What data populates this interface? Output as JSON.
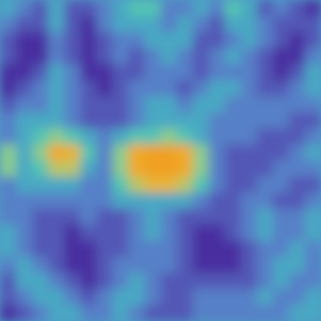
{
  "chart_data": {
    "type": "heatmap",
    "tick_labels": false,
    "cells": [
      [
        0.4,
        0.3,
        0.2,
        0.4,
        0.2,
        0.2,
        0.3,
        0.4,
        0.5,
        0.5,
        0.3,
        0.3,
        0.4,
        0.3,
        0.5,
        0.4,
        0.2,
        0.3,
        0.2,
        0.1
      ],
      [
        0.3,
        0.2,
        0.2,
        0.4,
        0.2,
        0.1,
        0.3,
        0.4,
        0.4,
        0.4,
        0.3,
        0.4,
        0.3,
        0.2,
        0.4,
        0.4,
        0.3,
        0.2,
        0.2,
        0.2
      ],
      [
        0.2,
        0.1,
        0.1,
        0.3,
        0.2,
        0.1,
        0.2,
        0.3,
        0.3,
        0.4,
        0.4,
        0.4,
        0.2,
        0.2,
        0.3,
        0.4,
        0.3,
        0.2,
        0.1,
        0.2
      ],
      [
        0.2,
        0.1,
        0.1,
        0.3,
        0.2,
        0.1,
        0.2,
        0.3,
        0.2,
        0.3,
        0.4,
        0.3,
        0.2,
        0.3,
        0.4,
        0.3,
        0.2,
        0.1,
        0.1,
        0.3
      ],
      [
        0.1,
        0.1,
        0.2,
        0.4,
        0.3,
        0.1,
        0.1,
        0.2,
        0.2,
        0.3,
        0.3,
        0.3,
        0.2,
        0.3,
        0.3,
        0.3,
        0.2,
        0.1,
        0.2,
        0.4
      ],
      [
        0.1,
        0.2,
        0.3,
        0.4,
        0.3,
        0.2,
        0.1,
        0.2,
        0.3,
        0.3,
        0.3,
        0.2,
        0.3,
        0.4,
        0.4,
        0.3,
        0.2,
        0.2,
        0.3,
        0.4
      ],
      [
        0.2,
        0.3,
        0.3,
        0.4,
        0.3,
        0.2,
        0.2,
        0.2,
        0.3,
        0.4,
        0.4,
        0.3,
        0.4,
        0.4,
        0.3,
        0.3,
        0.3,
        0.3,
        0.3,
        0.3
      ],
      [
        0.3,
        0.4,
        0.4,
        0.4,
        0.3,
        0.2,
        0.2,
        0.2,
        0.3,
        0.4,
        0.4,
        0.4,
        0.4,
        0.3,
        0.3,
        0.3,
        0.3,
        0.3,
        0.2,
        0.2
      ],
      [
        0.3,
        0.4,
        0.5,
        0.6,
        0.5,
        0.4,
        0.3,
        0.4,
        0.5,
        0.5,
        0.6,
        0.5,
        0.4,
        0.3,
        0.3,
        0.3,
        0.2,
        0.2,
        0.2,
        0.3
      ],
      [
        0.6,
        0.4,
        0.6,
        0.9,
        0.8,
        0.5,
        0.3,
        0.6,
        0.9,
        1.0,
        1.0,
        0.9,
        0.6,
        0.3,
        0.2,
        0.2,
        0.2,
        0.2,
        0.3,
        0.4
      ],
      [
        0.6,
        0.4,
        0.5,
        0.7,
        0.7,
        0.4,
        0.3,
        0.6,
        0.9,
        1.0,
        1.0,
        0.9,
        0.6,
        0.3,
        0.2,
        0.2,
        0.2,
        0.3,
        0.3,
        0.3
      ],
      [
        0.3,
        0.4,
        0.4,
        0.4,
        0.4,
        0.3,
        0.3,
        0.5,
        0.7,
        0.8,
        0.8,
        0.7,
        0.5,
        0.3,
        0.2,
        0.2,
        0.3,
        0.3,
        0.2,
        0.2
      ],
      [
        0.3,
        0.3,
        0.3,
        0.3,
        0.3,
        0.3,
        0.3,
        0.4,
        0.4,
        0.4,
        0.4,
        0.4,
        0.3,
        0.2,
        0.2,
        0.3,
        0.3,
        0.2,
        0.2,
        0.3
      ],
      [
        0.3,
        0.3,
        0.2,
        0.2,
        0.2,
        0.3,
        0.2,
        0.2,
        0.3,
        0.4,
        0.3,
        0.2,
        0.2,
        0.2,
        0.2,
        0.3,
        0.4,
        0.3,
        0.3,
        0.4
      ],
      [
        0.4,
        0.3,
        0.2,
        0.2,
        0.1,
        0.2,
        0.2,
        0.2,
        0.3,
        0.4,
        0.3,
        0.2,
        0.1,
        0.1,
        0.2,
        0.3,
        0.4,
        0.3,
        0.3,
        0.4
      ],
      [
        0.4,
        0.3,
        0.2,
        0.2,
        0.1,
        0.1,
        0.2,
        0.2,
        0.3,
        0.3,
        0.3,
        0.2,
        0.1,
        0.1,
        0.1,
        0.2,
        0.3,
        0.3,
        0.4,
        0.3
      ],
      [
        0.3,
        0.4,
        0.3,
        0.2,
        0.1,
        0.1,
        0.2,
        0.3,
        0.3,
        0.3,
        0.3,
        0.2,
        0.1,
        0.1,
        0.1,
        0.2,
        0.3,
        0.4,
        0.4,
        0.3
      ],
      [
        0.2,
        0.4,
        0.4,
        0.3,
        0.2,
        0.1,
        0.2,
        0.3,
        0.4,
        0.3,
        0.2,
        0.2,
        0.2,
        0.2,
        0.2,
        0.2,
        0.3,
        0.4,
        0.3,
        0.3
      ],
      [
        0.2,
        0.3,
        0.4,
        0.4,
        0.3,
        0.2,
        0.3,
        0.4,
        0.4,
        0.3,
        0.2,
        0.2,
        0.3,
        0.3,
        0.3,
        0.3,
        0.4,
        0.3,
        0.3,
        0.4
      ],
      [
        0.1,
        0.2,
        0.3,
        0.4,
        0.4,
        0.3,
        0.3,
        0.4,
        0.3,
        0.2,
        0.2,
        0.2,
        0.3,
        0.3,
        0.3,
        0.3,
        0.3,
        0.3,
        0.4,
        0.4
      ]
    ]
  }
}
